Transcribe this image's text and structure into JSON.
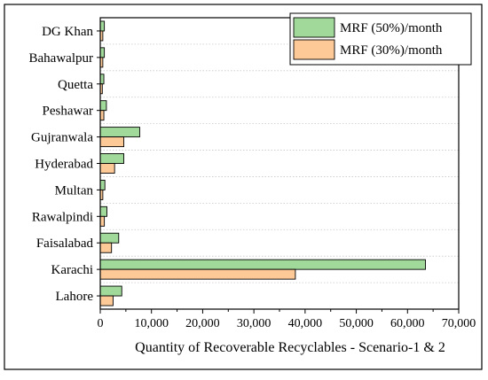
{
  "chart_data": {
    "type": "bar",
    "orientation": "horizontal",
    "categories": [
      "Lahore",
      "Karachi",
      "Faisalabad",
      "Rawalpindi",
      "Multan",
      "Hyderabad",
      "Gujranwala",
      "Peshawar",
      "Quetta",
      "Bahawalpur",
      "DG Khan"
    ],
    "series": [
      {
        "name": "MRF (50%)/month",
        "values": [
          4200,
          63500,
          3600,
          1300,
          900,
          4600,
          7700,
          1200,
          700,
          800,
          800
        ],
        "color": "#a1d99b"
      },
      {
        "name": "MRF (30%)/month",
        "values": [
          2500,
          38100,
          2200,
          800,
          500,
          2800,
          4600,
          700,
          400,
          500,
          500
        ],
        "color": "#fdc997"
      }
    ],
    "xlabel": "Quantity of Recoverable Recyclables - Scenario-1 & 2",
    "ylabel": "",
    "xlim": [
      0,
      70000
    ],
    "xticks": [
      "0",
      "10,000",
      "20,000",
      "30,000",
      "40,000",
      "50,000",
      "60,000",
      "70,000"
    ],
    "grid": "horizontal dotted",
    "legend_position": "top-right"
  }
}
